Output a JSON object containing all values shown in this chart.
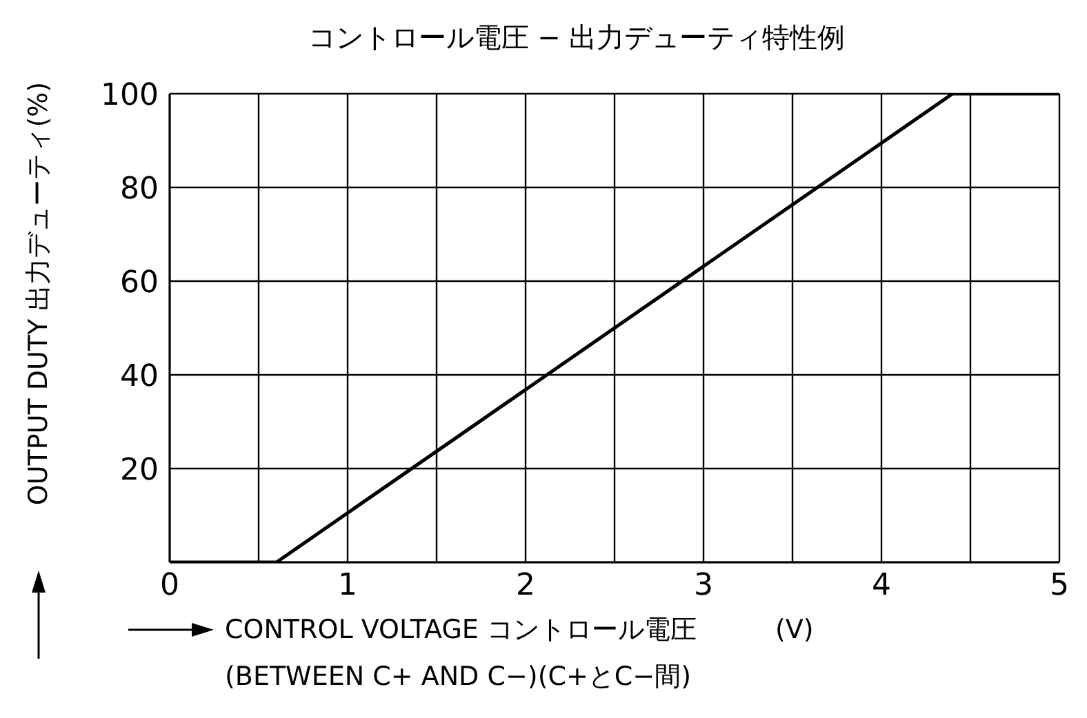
{
  "chart_data": {
    "type": "line",
    "title": "コントロール電圧 − 出力デューティ特性例",
    "xlabel": "CONTROL VOLTAGE コントロール電圧　　　(V)\n(BETWEEN C+ AND C−)(C+とC−間)",
    "ylabel": "OUTPUT DUTY 出力デューティ(%)",
    "series": [
      {
        "color": "#000000",
        "x": [
          0,
          0.6,
          4.4,
          5
        ],
        "values": [
          0,
          0,
          100,
          100
        ]
      }
    ],
    "xlim": [
      0,
      5
    ],
    "xticks": [
      0,
      {
        "value": 0.5,
        "label": null
      },
      1,
      {
        "value": 1.5,
        "label": null
      },
      2,
      {
        "value": 2.5,
        "label": null
      },
      3,
      {
        "value": 3.5,
        "label": null
      },
      4,
      {
        "value": 4.5,
        "label": null
      },
      5
    ],
    "ylim": [
      0,
      100
    ],
    "yticks": [
      {
        "value": 0,
        "label": null
      },
      20,
      40,
      60,
      80,
      100
    ],
    "grid": true,
    "legend": false,
    "marker": "none",
    "line_style": "solid"
  }
}
